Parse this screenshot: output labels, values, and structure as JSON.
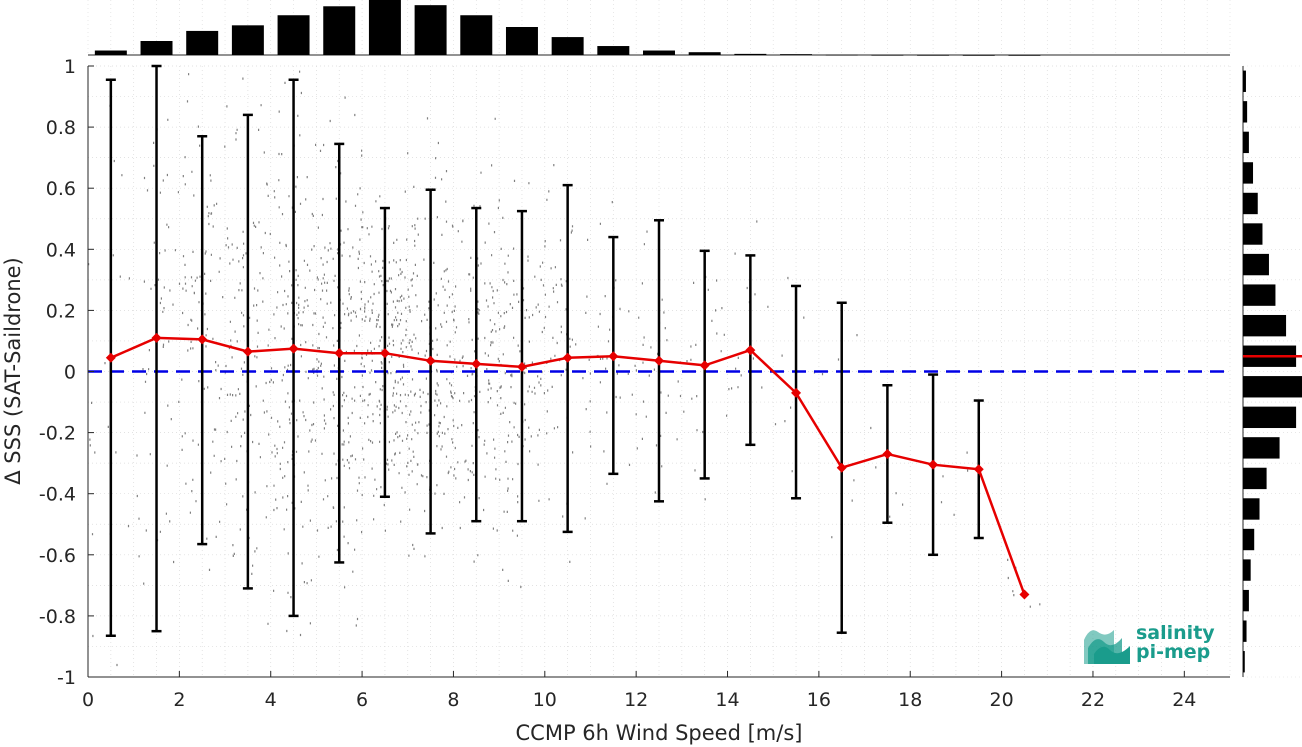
{
  "chart_data": {
    "type": "scatter",
    "title": "",
    "xlabel": "CCMP 6h Wind Speed [m/s]",
    "ylabel": "Δ SSS (SAT-Saildrone)",
    "xlim": [
      0,
      25
    ],
    "ylim": [
      -1,
      1
    ],
    "x_ticks": [
      0,
      2,
      4,
      6,
      8,
      10,
      12,
      14,
      16,
      18,
      20,
      22,
      24
    ],
    "y_ticks": [
      1,
      0.8,
      0.6,
      0.4,
      0.2,
      0,
      -0.2,
      -0.4,
      -0.6,
      -0.8,
      -1
    ],
    "x_tick_labels": [
      "0",
      "2",
      "4",
      "6",
      "8",
      "10",
      "12",
      "14",
      "16",
      "18",
      "20",
      "22",
      "24"
    ],
    "y_tick_labels": [
      "1",
      "0.8",
      "0.6",
      "0.4",
      "0.2",
      "0",
      "-0.2",
      "-0.4",
      "-0.6",
      "-0.8",
      "-1"
    ],
    "grid": true,
    "scatter_color": "#808080",
    "zero_line": {
      "y": 0,
      "color": "#0000e6",
      "style": "dashed"
    },
    "binned_mean": {
      "color": "#e60000",
      "x": [
        0.5,
        1.5,
        2.5,
        3.5,
        4.5,
        5.5,
        6.5,
        7.5,
        8.5,
        9.5,
        10.5,
        11.5,
        12.5,
        13.5,
        14.5,
        15.5,
        16.5,
        17.5,
        18.5,
        19.5,
        20.5
      ],
      "mean": [
        0.045,
        0.11,
        0.105,
        0.065,
        0.075,
        0.06,
        0.06,
        0.035,
        0.025,
        0.015,
        0.045,
        0.05,
        0.035,
        0.02,
        0.07,
        -0.07,
        -0.315,
        -0.27,
        -0.305,
        -0.32,
        -0.73
      ],
      "upper": [
        0.955,
        1.0,
        0.77,
        0.84,
        0.955,
        0.745,
        0.535,
        0.595,
        0.535,
        0.525,
        0.61,
        0.44,
        0.495,
        0.395,
        0.38,
        0.28,
        0.225,
        -0.045,
        -0.01,
        -0.095,
        null
      ],
      "lower": [
        -0.865,
        -0.85,
        -0.565,
        -0.71,
        -0.8,
        -0.625,
        -0.41,
        -0.53,
        -0.49,
        -0.49,
        -0.525,
        -0.335,
        -0.425,
        -0.35,
        -0.24,
        -0.415,
        -0.855,
        -0.495,
        -0.6,
        -0.545,
        null
      ]
    },
    "top_histogram": {
      "bins": [
        0.5,
        1.5,
        2.5,
        3.5,
        4.5,
        5.5,
        6.5,
        7.5,
        8.5,
        9.5,
        10.5,
        11.5,
        12.5,
        13.5,
        14.5,
        15.5,
        16.5,
        17.5,
        18.5,
        19.5,
        20.5
      ],
      "relative_counts": [
        0.08,
        0.25,
        0.43,
        0.53,
        0.71,
        0.87,
        1.0,
        0.89,
        0.71,
        0.5,
        0.32,
        0.16,
        0.08,
        0.05,
        0.02,
        0.015,
        0.005,
        0.003,
        0.002,
        0.001,
        0.001
      ],
      "color": "#000000"
    },
    "right_histogram": {
      "bins": [
        0.95,
        0.85,
        0.75,
        0.65,
        0.55,
        0.45,
        0.35,
        0.25,
        0.15,
        0.05,
        -0.05,
        -0.15,
        -0.25,
        -0.35,
        -0.45,
        -0.55,
        -0.65,
        -0.75,
        -0.85,
        -0.95
      ],
      "relative_counts": [
        0.05,
        0.07,
        0.1,
        0.17,
        0.25,
        0.33,
        0.44,
        0.55,
        0.73,
        0.9,
        1.0,
        0.9,
        0.62,
        0.4,
        0.28,
        0.19,
        0.13,
        0.1,
        0.06,
        0.03
      ],
      "color": "#000000",
      "mean_marker": {
        "y": 0.05,
        "color": "#e60000"
      }
    }
  },
  "logo": {
    "line1": "salinity",
    "line2": "pi-mep",
    "color": "#1a9c8c"
  }
}
